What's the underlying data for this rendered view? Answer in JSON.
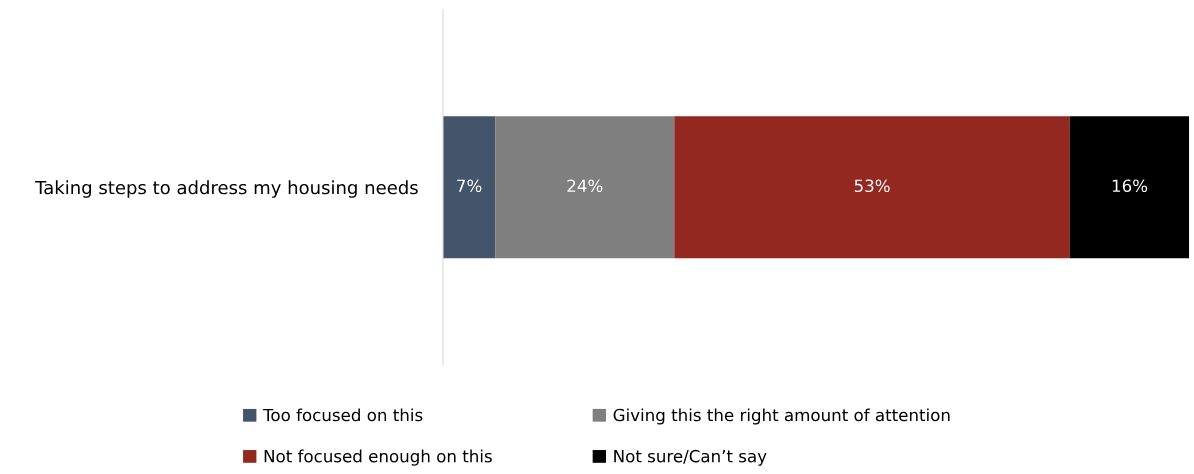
{
  "chart_data": {
    "type": "bar",
    "orientation": "horizontal",
    "stacked": true,
    "categories": [
      "Taking steps to address my housing needs"
    ],
    "series": [
      {
        "name": "Too focused on this",
        "color": "#44546a",
        "values": [
          7
        ],
        "value_labels": [
          "7%"
        ]
      },
      {
        "name": "Giving this the right amount of attention",
        "color": "#7f7f7f",
        "values": [
          24
        ],
        "value_labels": [
          "24%"
        ]
      },
      {
        "name": "Not focused enough on this",
        "color": "#922820",
        "values": [
          53
        ],
        "value_labels": [
          "53%"
        ]
      },
      {
        "name": "Not sure/Can’t say",
        "color": "#000000",
        "values": [
          16
        ],
        "value_labels": [
          "16%"
        ]
      }
    ],
    "tick_labels": "y",
    "grid": false,
    "legend": "bottom"
  }
}
